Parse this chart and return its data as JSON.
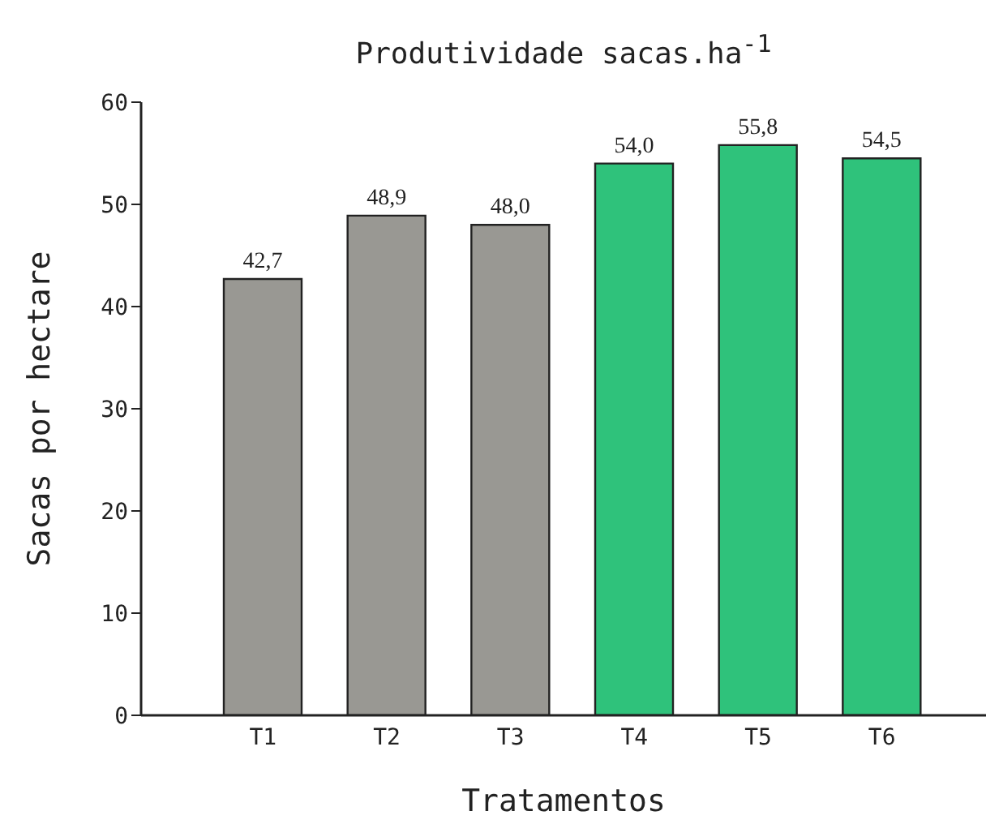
{
  "chart_data": {
    "type": "bar",
    "title": "Produtividade sacas.ha$^{-1}$",
    "xlabel": "Tratamentos",
    "ylabel": "Sacas por hectare",
    "categories": [
      "T1",
      "T2",
      "T3",
      "T4",
      "T5",
      "T6"
    ],
    "values": [
      42.7,
      48.9,
      48.0,
      54.0,
      55.8,
      54.5
    ],
    "value_labels": [
      "42,7",
      "48,9",
      "48,0",
      "54,0",
      "55,8",
      "54,5"
    ],
    "colors": [
      "#999893",
      "#999893",
      "#999893",
      "#2fc27b",
      "#2fc27b",
      "#2fc27b"
    ],
    "ylim": [
      0,
      60
    ],
    "yticks": [
      0,
      10,
      20,
      30,
      40,
      50,
      60
    ],
    "grid": false
  }
}
